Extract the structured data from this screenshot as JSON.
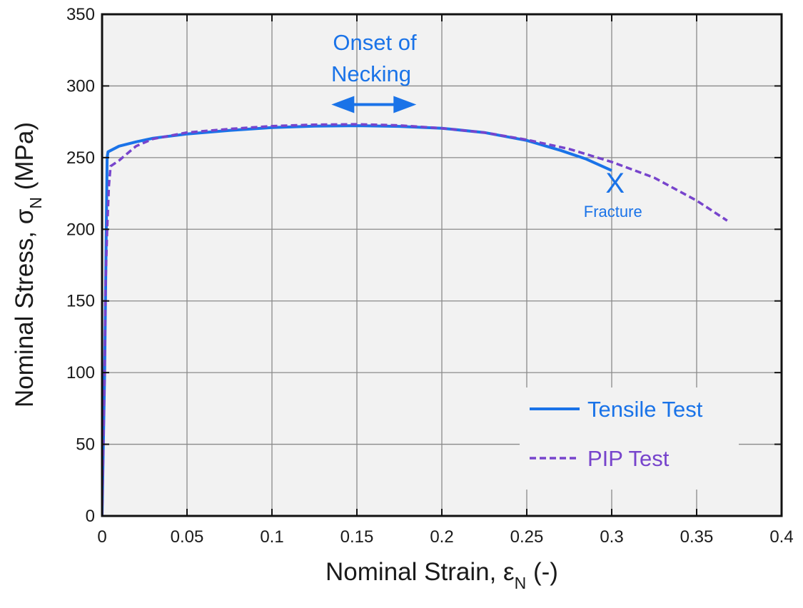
{
  "chart_data": {
    "type": "line",
    "xlabel": "Nominal Strain, ",
    "xlabel_symbol": "ε",
    "xlabel_sub": "N",
    "xlabel_unit": " (-)",
    "ylabel": "Nominal Stress, ",
    "ylabel_symbol": "σ",
    "ylabel_sub": "N",
    "ylabel_unit": " (MPa)",
    "xlim": [
      0,
      0.4
    ],
    "ylim": [
      0,
      350
    ],
    "xticks": [
      "0",
      "0.05",
      "0.1",
      "0.15",
      "0.2",
      "0.25",
      "0.3",
      "0.35",
      "0.4"
    ],
    "yticks": [
      "0",
      "50",
      "100",
      "150",
      "200",
      "250",
      "300",
      "350"
    ],
    "grid": true,
    "legend_position": "bottom-right",
    "series": [
      {
        "name": "Tensile Test",
        "color": "#1a73e8",
        "style": "solid",
        "points": [
          [
            0,
            0
          ],
          [
            0.0015,
            100
          ],
          [
            0.0025,
            200
          ],
          [
            0.003,
            250
          ],
          [
            0.0035,
            254
          ],
          [
            0.01,
            258
          ],
          [
            0.02,
            261
          ],
          [
            0.03,
            263.5
          ],
          [
            0.05,
            266.5
          ],
          [
            0.075,
            269
          ],
          [
            0.1,
            271
          ],
          [
            0.125,
            272
          ],
          [
            0.15,
            272.3
          ],
          [
            0.175,
            271.8
          ],
          [
            0.2,
            270.5
          ],
          [
            0.225,
            267.5
          ],
          [
            0.25,
            262
          ],
          [
            0.27,
            255
          ],
          [
            0.285,
            249
          ],
          [
            0.3,
            241
          ]
        ]
      },
      {
        "name": "PIP Test",
        "color": "#7744cc",
        "style": "dashed",
        "points": [
          [
            0,
            0
          ],
          [
            0.0015,
            100
          ],
          [
            0.002,
            160
          ],
          [
            0.003,
            200
          ],
          [
            0.004,
            230
          ],
          [
            0.005,
            244
          ],
          [
            0.01,
            248
          ],
          [
            0.02,
            258
          ],
          [
            0.03,
            263
          ],
          [
            0.05,
            267.5
          ],
          [
            0.075,
            270
          ],
          [
            0.1,
            272
          ],
          [
            0.125,
            273
          ],
          [
            0.15,
            273.3
          ],
          [
            0.175,
            272.5
          ],
          [
            0.2,
            270.5
          ],
          [
            0.225,
            267.5
          ],
          [
            0.25,
            262.5
          ],
          [
            0.275,
            256
          ],
          [
            0.3,
            247
          ],
          [
            0.325,
            236
          ],
          [
            0.35,
            220
          ],
          [
            0.368,
            206
          ]
        ]
      }
    ],
    "annotations": {
      "necking_line1": "Onset of",
      "necking_line2": "Necking",
      "necking_range": [
        0.135,
        0.185
      ],
      "necking_stress": 287,
      "fracture_label": "Fracture",
      "fracture_marker": "X",
      "fracture_point": [
        0.302,
        233
      ],
      "color": "#1a73e8"
    }
  }
}
